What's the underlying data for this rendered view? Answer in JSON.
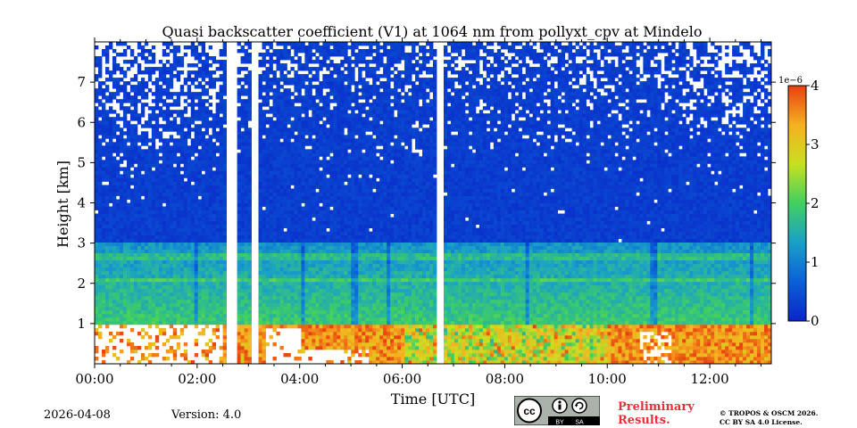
{
  "chart_data": {
    "type": "heatmap",
    "title": "Quasi backscatter coefficient (V1) at 1064 nm from pollyxt_cpv at Mindelo",
    "xlabel": "Time [UTC]",
    "ylabel": "Height [km]",
    "x_range_hours": [
      0,
      13.2
    ],
    "ylim_km": [
      0,
      8
    ],
    "x_ticks": [
      {
        "hour": 0,
        "label": "00:00"
      },
      {
        "hour": 2,
        "label": "02:00"
      },
      {
        "hour": 4,
        "label": "04:00"
      },
      {
        "hour": 6,
        "label": "06:00"
      },
      {
        "hour": 8,
        "label": "08:00"
      },
      {
        "hour": 10,
        "label": "10:00"
      },
      {
        "hour": 12,
        "label": "12:00"
      }
    ],
    "y_ticks": [
      {
        "km": 1,
        "label": "1"
      },
      {
        "km": 2,
        "label": "2"
      },
      {
        "km": 3,
        "label": "3"
      },
      {
        "km": 4,
        "label": "4"
      },
      {
        "km": 5,
        "label": "5"
      },
      {
        "km": 6,
        "label": "6"
      },
      {
        "km": 7,
        "label": "7"
      }
    ],
    "colorbar": {
      "min": 0,
      "max": 4,
      "multiplier": "1e−6",
      "ticks": [
        {
          "value": 0,
          "label": "0"
        },
        {
          "value": 1,
          "label": "1"
        },
        {
          "value": 2,
          "label": "2"
        },
        {
          "value": 3,
          "label": "3"
        },
        {
          "value": 4,
          "label": "4"
        }
      ],
      "colors": [
        "#0a25c8",
        "#0a60d8",
        "#1aa0c8",
        "#40d060",
        "#c8e020",
        "#f6b020",
        "#e84010"
      ]
    },
    "data_gaps_hours": [
      [
        2.6,
        2.78
      ],
      [
        3.05,
        3.22
      ],
      [
        6.68,
        6.84
      ]
    ],
    "layers": {
      "aerosol_layer_top_km": 3.0,
      "enhanced_band_km": [
        2.0,
        2.9
      ],
      "near_surface_strong_km": [
        0,
        1.0
      ],
      "noisy_above_km": 5.0
    }
  },
  "footer": {
    "date": "2026-04-08",
    "version": "Version: 4.0",
    "preliminary_line1": "Preliminary",
    "preliminary_line2": "Results.",
    "copyright_line1": "© TROPOS & OSCM 2026.",
    "copyright_line2": "CC BY SA 4.0 License.",
    "cc_label": "cc",
    "by_label": "BY",
    "sa_label": "SA"
  }
}
